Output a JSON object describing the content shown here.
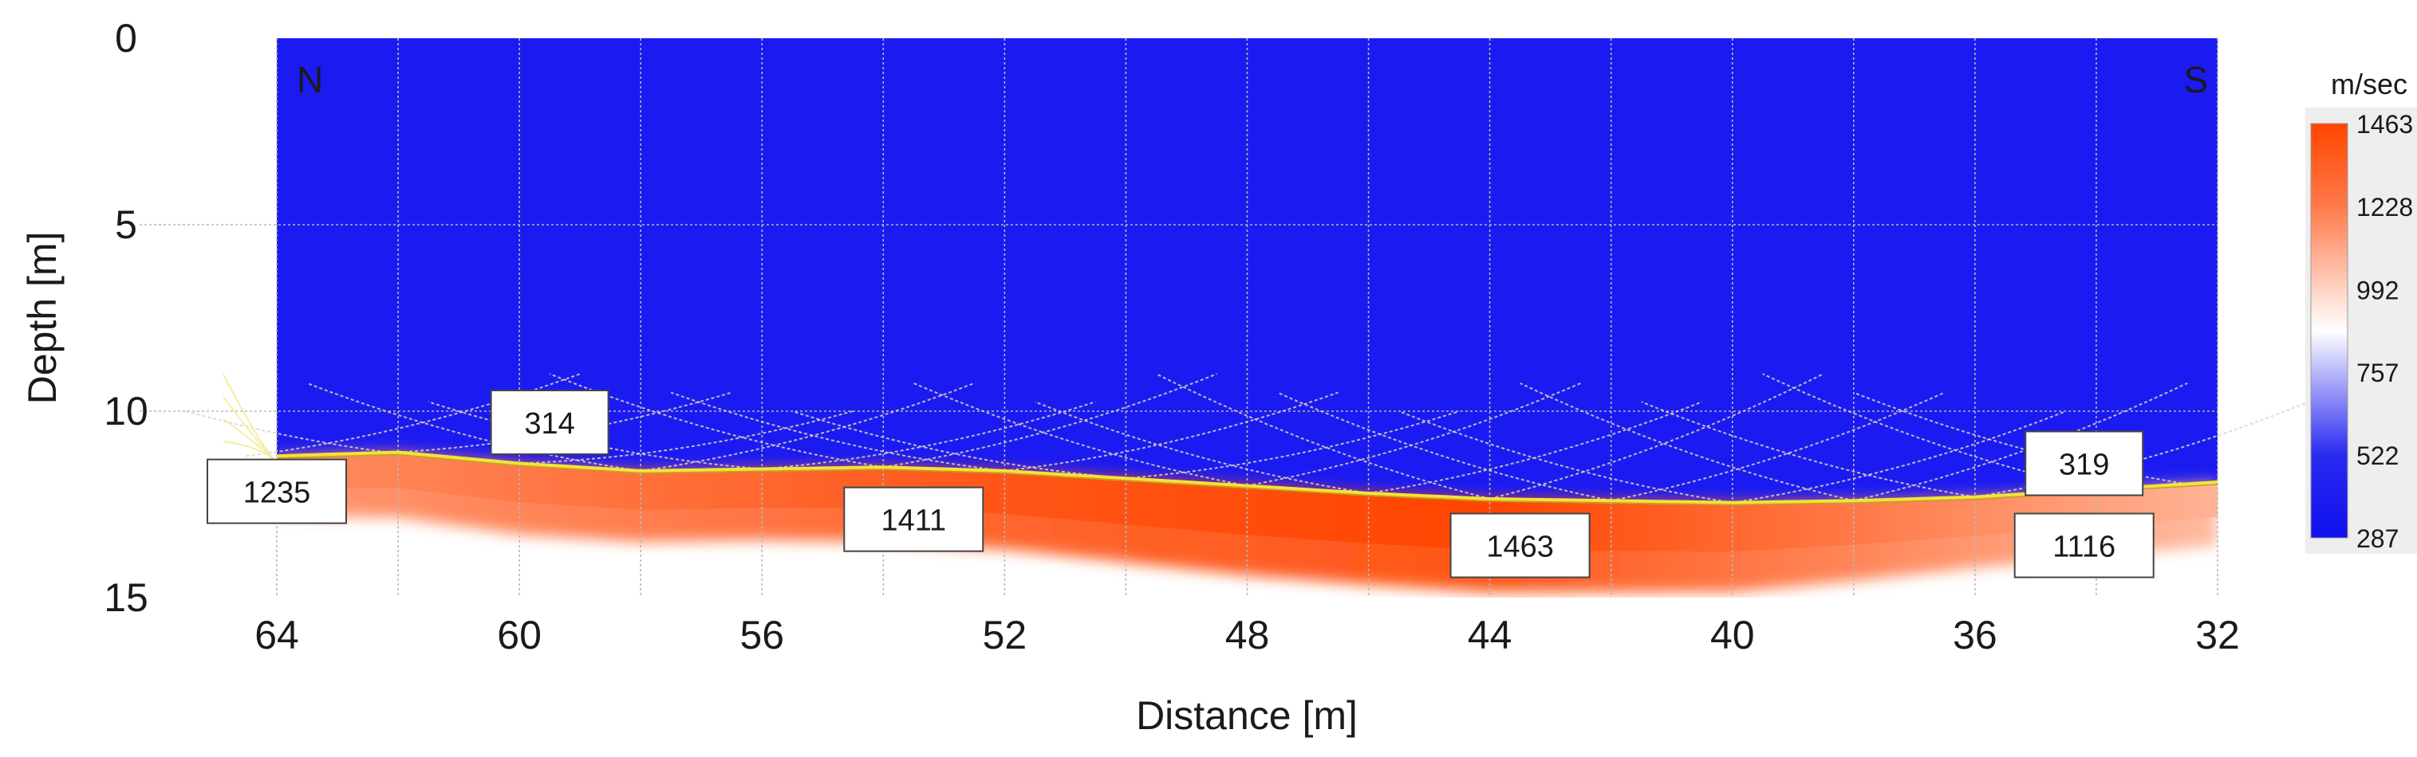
{
  "chart_data": {
    "type": "heatmap",
    "xlabel": "Distance [m]",
    "ylabel": "Depth [m]",
    "xlim": [
      64,
      32
    ],
    "ylim": [
      0,
      15
    ],
    "x_ticks": [
      64,
      60,
      56,
      52,
      48,
      44,
      40,
      36,
      32
    ],
    "y_ticks": [
      0,
      5,
      10,
      15
    ],
    "x_grid_step": 2,
    "y_grid_step": 5,
    "grid": true,
    "direction_labels": {
      "left": "N",
      "right": "S"
    },
    "colorbar": {
      "unit": "m/sec",
      "ticks": [
        1463,
        1228,
        992,
        757,
        522,
        287
      ],
      "min": 287,
      "max": 1463,
      "colors": [
        "#1010f0",
        "#ffffff",
        "#ff4500"
      ],
      "placement": "right"
    },
    "background_velocity": 314,
    "interface": [
      {
        "x": 64,
        "depth": 11.2
      },
      {
        "x": 62,
        "depth": 11.1
      },
      {
        "x": 60,
        "depth": 11.4
      },
      {
        "x": 58,
        "depth": 11.6
      },
      {
        "x": 56,
        "depth": 11.55
      },
      {
        "x": 54,
        "depth": 11.5
      },
      {
        "x": 52,
        "depth": 11.6
      },
      {
        "x": 50,
        "depth": 11.8
      },
      {
        "x": 48,
        "depth": 12.0
      },
      {
        "x": 46,
        "depth": 12.2
      },
      {
        "x": 44,
        "depth": 12.35
      },
      {
        "x": 42,
        "depth": 12.4
      },
      {
        "x": 40,
        "depth": 12.45
      },
      {
        "x": 38,
        "depth": 12.4
      },
      {
        "x": 36,
        "depth": 12.3
      },
      {
        "x": 34,
        "depth": 12.1
      },
      {
        "x": 32,
        "depth": 11.9
      }
    ],
    "lower_layer_thickness": [
      {
        "x": 64,
        "thickness": 1.6
      },
      {
        "x": 60,
        "thickness": 1.9
      },
      {
        "x": 56,
        "thickness": 1.9
      },
      {
        "x": 52,
        "thickness": 2.1
      },
      {
        "x": 48,
        "thickness": 2.4
      },
      {
        "x": 44,
        "thickness": 2.5
      },
      {
        "x": 40,
        "thickness": 2.4
      },
      {
        "x": 36,
        "thickness": 1.9
      },
      {
        "x": 32,
        "thickness": 1.7
      }
    ],
    "lower_layer_velocity": [
      {
        "x": 64,
        "v": 1235
      },
      {
        "x": 60,
        "v": 1300
      },
      {
        "x": 52,
        "v": 1411
      },
      {
        "x": 44,
        "v": 1463
      },
      {
        "x": 38,
        "v": 1300
      },
      {
        "x": 32,
        "v": 1116
      }
    ],
    "ray_sources_x": [
      64.5,
      62,
      60,
      58,
      56,
      54,
      52,
      50,
      48,
      46,
      44,
      42,
      40,
      38,
      36,
      34,
      32.5
    ],
    "annotations": [
      {
        "text": "314",
        "x": 59.5,
        "depth": 10.3
      },
      {
        "text": "1235",
        "x": 64,
        "depth": 12.15
      },
      {
        "text": "1411",
        "x": 53.5,
        "depth": 12.9
      },
      {
        "text": "1463",
        "x": 43.5,
        "depth": 13.6
      },
      {
        "text": "319",
        "x": 34.2,
        "depth": 11.4
      },
      {
        "text": "1116",
        "x": 34.2,
        "depth": 13.6
      }
    ]
  }
}
